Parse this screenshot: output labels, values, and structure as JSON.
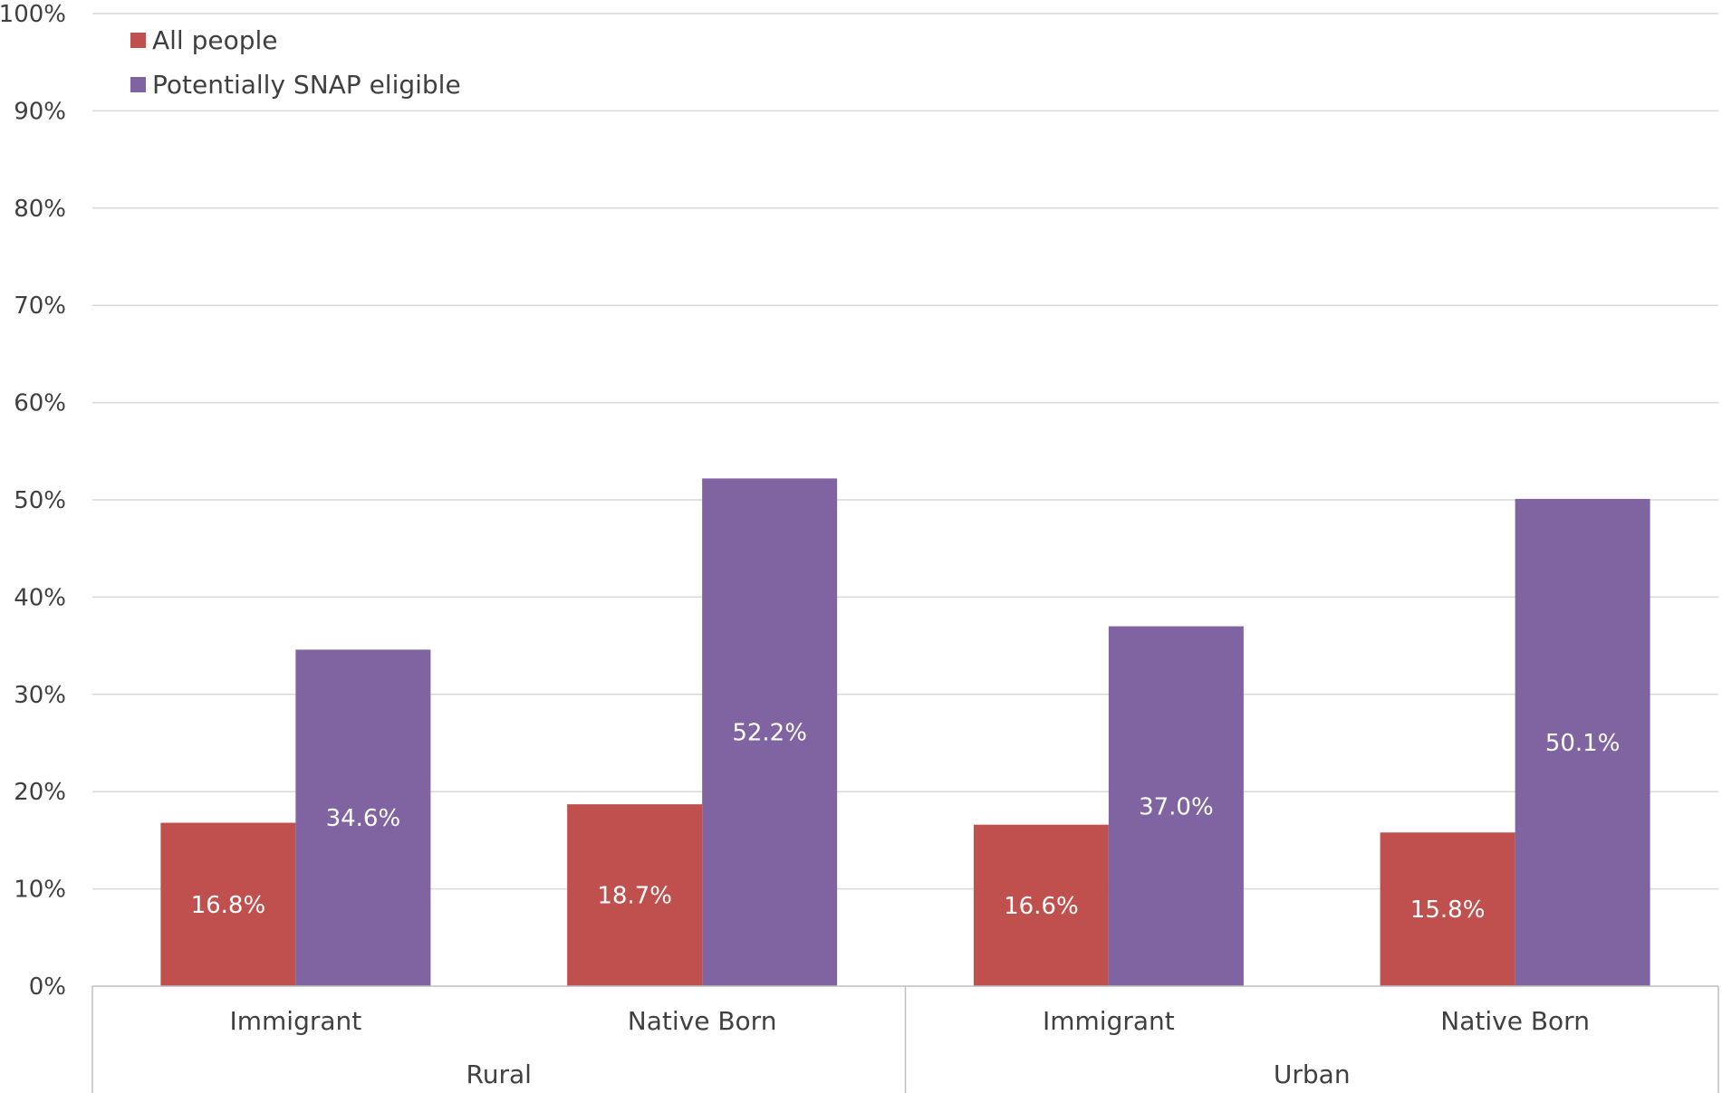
{
  "chart_data": {
    "type": "bar",
    "categories": [
      "Immigrant",
      "Native Born",
      "Immigrant",
      "Native Born"
    ],
    "groups": [
      {
        "label": "Rural",
        "categories": [
          0,
          1
        ]
      },
      {
        "label": "Urban",
        "categories": [
          2,
          3
        ]
      }
    ],
    "series": [
      {
        "name": "All people",
        "color": "#c0504d",
        "values": [
          16.8,
          18.7,
          16.6,
          15.8
        ],
        "labels": [
          "16.8%",
          "18.7%",
          "16.6%",
          "15.8%"
        ]
      },
      {
        "name": "Potentially SNAP eligible",
        "color": "#8064a2",
        "values": [
          34.6,
          52.2,
          37.0,
          50.1
        ],
        "labels": [
          "34.6%",
          "52.2%",
          "37.0%",
          "50.1%"
        ]
      }
    ],
    "ylim": [
      0,
      100
    ],
    "yticks": [
      "0%",
      "10%",
      "20%",
      "30%",
      "40%",
      "50%",
      "60%",
      "70%",
      "80%",
      "90%",
      "100%"
    ],
    "grid": true,
    "legend_position": "top-left"
  }
}
